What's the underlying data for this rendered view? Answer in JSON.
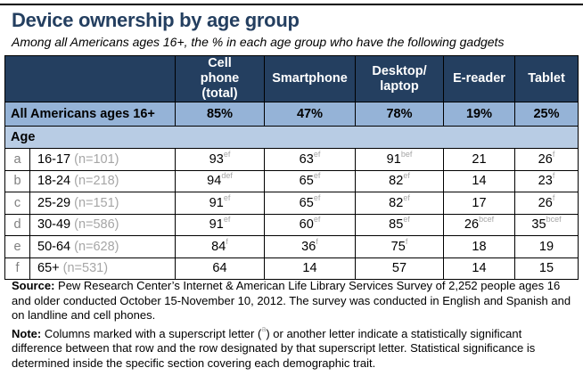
{
  "title": "Device ownership by age group",
  "subtitle": "Among all Americans ages 16+, the % in each age group who have the following gadgets",
  "colors": {
    "header_bg": "#243f60",
    "total_row_bg": "#95b3d7",
    "section_row_bg": "#b8cce4"
  },
  "chart_data": {
    "type": "table",
    "columns": [
      "Cell phone (total)",
      "Smartphone",
      "Desktop/ laptop",
      "E-reader",
      "Tablet"
    ],
    "total_row": {
      "label": "All Americans ages 16+",
      "values": [
        "85%",
        "47%",
        "78%",
        "19%",
        "25%"
      ]
    },
    "section": "Age",
    "rows": [
      {
        "letter": "a",
        "label": "16-17",
        "n": "(n=101)",
        "values": [
          93,
          63,
          91,
          21,
          26
        ],
        "sup": [
          "ef",
          "ef",
          "bef",
          "",
          "f"
        ]
      },
      {
        "letter": "b",
        "label": "18-24",
        "n": "(n=218)",
        "values": [
          94,
          65,
          82,
          14,
          23
        ],
        "sup": [
          "def",
          "ef",
          "ef",
          "",
          "f"
        ]
      },
      {
        "letter": "c",
        "label": "25-29",
        "n": "(n=151)",
        "values": [
          91,
          65,
          82,
          17,
          26
        ],
        "sup": [
          "ef",
          "ef",
          "ef",
          "",
          "f"
        ]
      },
      {
        "letter": "d",
        "label": "30-49",
        "n": "(n=586)",
        "values": [
          91,
          60,
          85,
          26,
          35
        ],
        "sup": [
          "ef",
          "ef",
          "ef",
          "bcef",
          "bcef"
        ]
      },
      {
        "letter": "e",
        "label": "50-64",
        "n": "(n=628)",
        "values": [
          84,
          36,
          75,
          18,
          19
        ],
        "sup": [
          "f",
          "f",
          "f",
          "",
          ""
        ]
      },
      {
        "letter": "f",
        "label": "65+",
        "n": "(n=531)",
        "values": [
          64,
          14,
          57,
          14,
          15
        ],
        "sup": [
          "",
          "",
          "",
          "",
          ""
        ]
      }
    ]
  },
  "notes": {
    "source_label": "Source:",
    "source_text": " Pew Research Center’s Internet & American Life Library Services Survey of 2,252 people ages 16 and older conducted October 15-November 10, 2012. The survey was conducted in English and Spanish and on landline and cell phones.",
    "note_label": "Note:",
    "note_text_1": " Columns marked with a superscript letter (",
    "note_sup": "a",
    "note_text_2": ") or another letter indicate a statistically significant difference between that row and the row designated by that superscript letter. Statistical significance is determined inside the specific section covering each demographic trait."
  }
}
